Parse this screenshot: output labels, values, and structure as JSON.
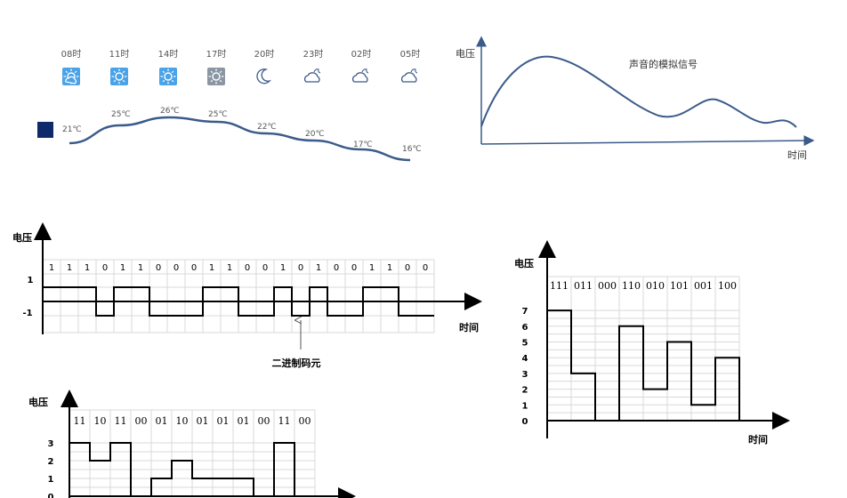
{
  "weather": {
    "times": [
      "08时",
      "11时",
      "14时",
      "17时",
      "20时",
      "23时",
      "02时",
      "05时"
    ],
    "icons": [
      "partly-sunny-icon",
      "sun-icon",
      "sun-icon",
      "hazy-sun-icon",
      "crescent-moon-icon",
      "cloudy-night-icon",
      "cloudy-night-icon",
      "cloudy-night-icon"
    ],
    "temps": [
      "21℃",
      "25℃",
      "26℃",
      "25℃",
      "22℃",
      "20℃",
      "17℃",
      "16℃"
    ],
    "temp_values": [
      21,
      25,
      26,
      25,
      22,
      20,
      17,
      16
    ],
    "curve_color": "#3b5b8a",
    "swatch_color": "#0d2a6b"
  },
  "analog": {
    "ylabel": "电压",
    "xlabel": "时间",
    "caption": "声音的模拟信号",
    "line_color": "#3b5b8a"
  },
  "binary": {
    "ylabel": "电压",
    "xlabel": "时间",
    "bits": [
      "1",
      "1",
      "1",
      "0",
      "1",
      "1",
      "0",
      "0",
      "0",
      "1",
      "1",
      "0",
      "0",
      "1",
      "0",
      "1",
      "0",
      "0",
      "1",
      "1",
      "0",
      "0"
    ],
    "levels": [
      "1",
      "-1"
    ],
    "annotation": "二进制码元"
  },
  "quaternary": {
    "ylabel": "电压",
    "codes": [
      "11",
      "10",
      "11",
      "00",
      "01",
      "10",
      "01",
      "01",
      "01",
      "00",
      "11",
      "00"
    ],
    "values": [
      3,
      2,
      3,
      0,
      1,
      2,
      1,
      1,
      1,
      0,
      3,
      0
    ],
    "ticks": [
      "3",
      "2",
      "1",
      "0"
    ]
  },
  "octal": {
    "ylabel": "电压",
    "xlabel": "时间",
    "codes": [
      "111",
      "011",
      "000",
      "110",
      "010",
      "101",
      "001",
      "100"
    ],
    "values": [
      7,
      3,
      0,
      6,
      2,
      5,
      1,
      4
    ],
    "ticks": [
      "7",
      "6",
      "5",
      "4",
      "3",
      "2",
      "1",
      "0"
    ]
  }
}
